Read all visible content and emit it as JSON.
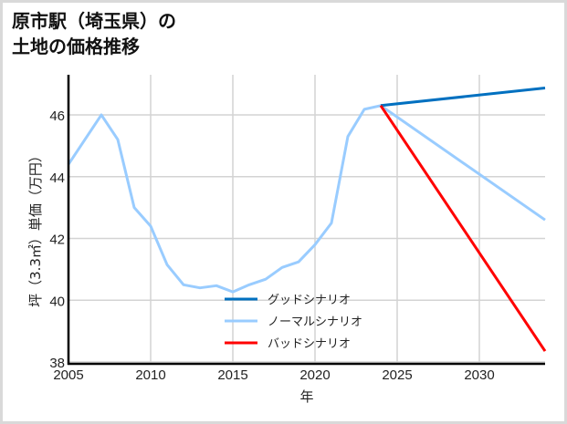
{
  "chart_data": {
    "type": "line",
    "title": "原市駅（埼玉県）の\n土地の価格推移",
    "xlabel": "年",
    "ylabel": "坪（3.3㎡）単価（万円）",
    "xlim": [
      2005,
      2034
    ],
    "ylim": [
      38,
      47.3
    ],
    "xticks": [
      2005,
      2010,
      2015,
      2020,
      2025,
      2030
    ],
    "yticks": [
      38,
      40,
      42,
      44,
      46
    ],
    "grid": true,
    "legend_position": "lower center",
    "series": [
      {
        "name": "グッドシナリオ",
        "color": "#0070c0",
        "x": [
          2024,
          2034
        ],
        "values": [
          46.3,
          46.87
        ]
      },
      {
        "name": "ノーマルシナリオ",
        "color": "#99ccff",
        "x": [
          2005,
          2006,
          2007,
          2008,
          2009,
          2010,
          2011,
          2012,
          2013,
          2014,
          2015,
          2016,
          2017,
          2018,
          2019,
          2020,
          2021,
          2022,
          2023,
          2024,
          2034
        ],
        "values": [
          44.4,
          45.2,
          46.0,
          45.2,
          43.0,
          42.4,
          41.15,
          40.5,
          40.4,
          40.47,
          40.27,
          40.5,
          40.68,
          41.06,
          41.24,
          41.8,
          42.5,
          45.3,
          46.18,
          46.3,
          42.6
        ]
      },
      {
        "name": "バッドシナリオ",
        "color": "#ff0000",
        "x": [
          2024,
          2034
        ],
        "values": [
          46.3,
          38.35
        ]
      }
    ]
  },
  "title": "原市駅（埼玉県）の\n土地の価格推移",
  "xlabel": "年",
  "ylabel": "坪（3.3㎡）単価（万円）"
}
